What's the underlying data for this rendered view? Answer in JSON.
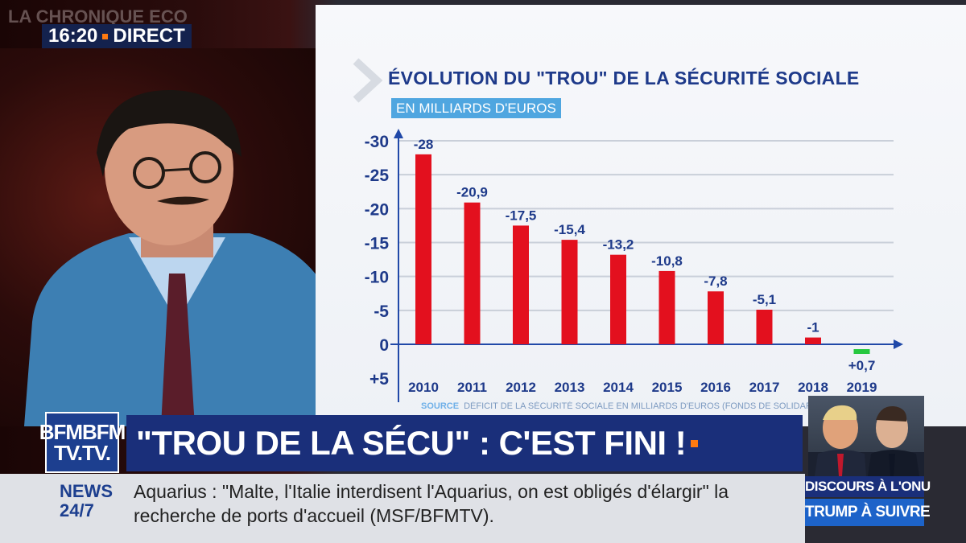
{
  "broadcast": {
    "segment": "LA CHRONIQUE ECO",
    "time": "16:20",
    "live": "DIRECT",
    "logo_line1": "BFMBFM",
    "logo_line2": "TV.TV.",
    "headline": "\"TROU DE LA SÉCU\" : C'EST FINI !",
    "news_label": "NEWS",
    "news_sub": "24/7",
    "ticker": "Aquarius : \"Malte, l'Italie interdisent l'Aquarius, on est obligés d'élargir\" la recherche de ports d'accueil (MSF/BFMTV).",
    "side_caption1": "DISCOURS À L'ONU",
    "side_caption2": "TRUMP À SUIVRE"
  },
  "chart_data": {
    "type": "bar",
    "title": "ÉVOLUTION DU \"TROU\" DE LA SÉCURITÉ SOCIALE",
    "subtitle": "EN MILLIARDS D'EUROS",
    "categories": [
      "2010",
      "2011",
      "2012",
      "2013",
      "2014",
      "2015",
      "2016",
      "2017",
      "2018",
      "2019"
    ],
    "values": [
      -28,
      -20.9,
      -17.5,
      -15.4,
      -13.2,
      -10.8,
      -7.8,
      -5.1,
      -1,
      0.7
    ],
    "value_labels": [
      "-28",
      "-20,9",
      "-17,5",
      "-15,4",
      "-13,2",
      "-10,8",
      "-7,8",
      "-5,1",
      "-1",
      "+0,7"
    ],
    "y_ticks": [
      -30,
      -25,
      -20,
      -15,
      -10,
      -5,
      0,
      5
    ],
    "y_tick_labels": [
      "-30",
      "-25",
      "-20",
      "-15",
      "-10",
      "-5",
      "0",
      "+5"
    ],
    "ylim": [
      -30,
      5
    ],
    "axis_inverted": true,
    "grid": true,
    "colors": {
      "negative": "#e3101e",
      "positive": "#27c840",
      "axis": "#2149a8",
      "grid": "#c9cfd9",
      "label": "#1e3a8a"
    },
    "source_key": "SOURCE",
    "source_text": "DÉFICIT DE LA SÉCURITÉ SOCIALE EN MILLIARDS D'EUROS (FONDS DE SOLIDARITÉ VIEILLESSE COMPRIS)"
  }
}
